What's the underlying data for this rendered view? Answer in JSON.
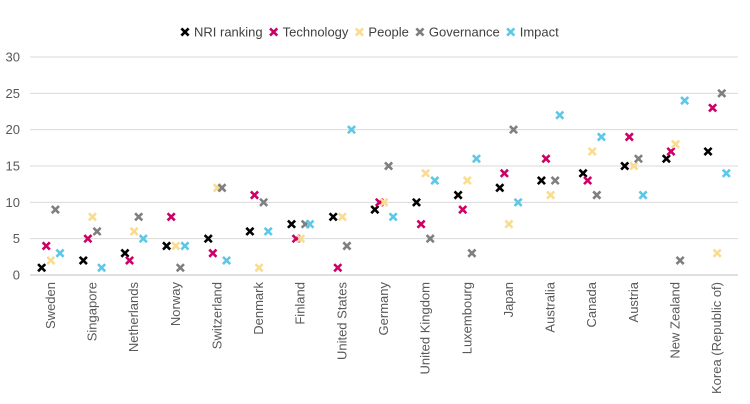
{
  "chart_data": {
    "type": "scatter",
    "title": "",
    "xlabel": "",
    "ylabel": "",
    "ylim": [
      0,
      30
    ],
    "yticks": [
      0,
      5,
      10,
      15,
      20,
      25,
      30
    ],
    "grid": true,
    "legend_position": "top",
    "categories": [
      "Sweden",
      "Singapore",
      "Netherlands",
      "Norway",
      "Switzerland",
      "Denmark",
      "Finland",
      "United States",
      "Germany",
      "United Kingdom",
      "Luxembourg",
      "Japan",
      "Australia",
      "Canada",
      "Austria",
      "New Zealand",
      "Korea (Republic of)"
    ],
    "series": [
      {
        "name": "NRI ranking",
        "color": "#000000",
        "values": [
          1,
          2,
          3,
          4,
          5,
          6,
          7,
          8,
          9,
          10,
          11,
          12,
          13,
          14,
          15,
          16,
          17
        ]
      },
      {
        "name": "Technology",
        "color": "#cc0066",
        "values": [
          4,
          5,
          2,
          8,
          3,
          11,
          5,
          1,
          10,
          7,
          9,
          14,
          16,
          13,
          19,
          17,
          23
        ]
      },
      {
        "name": "People",
        "color": "#f9dc8f",
        "values": [
          2,
          8,
          6,
          4,
          12,
          1,
          5,
          8,
          10,
          14,
          13,
          7,
          11,
          17,
          15,
          18,
          3
        ]
      },
      {
        "name": "Governance",
        "color": "#7f7f7f",
        "values": [
          9,
          6,
          8,
          1,
          12,
          10,
          7,
          4,
          15,
          5,
          3,
          20,
          13,
          11,
          16,
          2,
          25
        ]
      },
      {
        "name": "Impact",
        "color": "#5bc8e8",
        "values": [
          3,
          1,
          5,
          4,
          2,
          6,
          7,
          20,
          8,
          13,
          16,
          10,
          22,
          19,
          11,
          24,
          14
        ]
      }
    ]
  }
}
